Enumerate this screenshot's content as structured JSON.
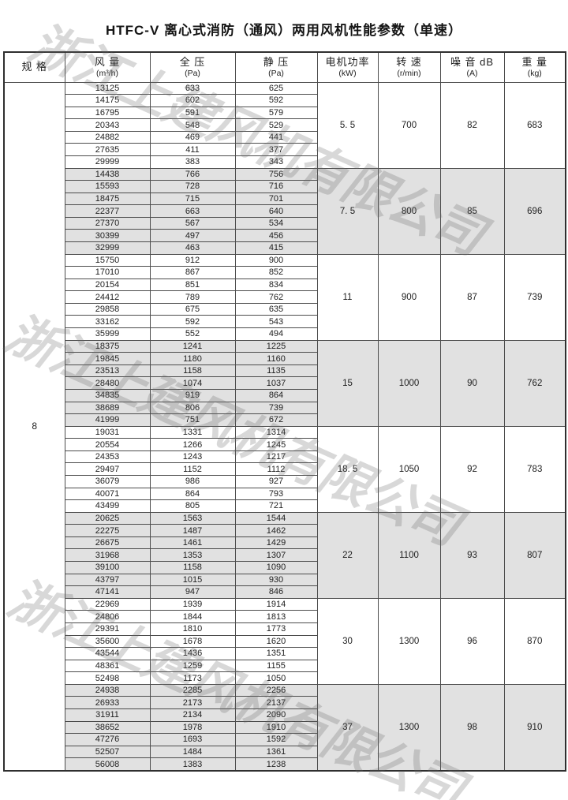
{
  "title": "HTFC-V 离心式消防（通风）两用风机性能参数（单速）",
  "watermark": {
    "text": "浙江上建风机有限公司"
  },
  "colors": {
    "shaded_row": "#e1e1e1",
    "border": "#4c4c4c",
    "text": "#1e1e1e"
  },
  "table": {
    "columns": [
      {
        "label": "规 格",
        "unit": ""
      },
      {
        "label": "风 量",
        "unit": "(m³/h)"
      },
      {
        "label": "全 压",
        "unit": "(Pa)"
      },
      {
        "label": "静 压",
        "unit": "(Pa)"
      },
      {
        "label": "电机功率",
        "unit": "(kW)"
      },
      {
        "label": "转 速",
        "unit": "(r/min)"
      },
      {
        "label": "噪 音 dB",
        "unit": "(A)"
      },
      {
        "label": "重 量",
        "unit": "(kg)"
      }
    ],
    "spec": "8",
    "groups": [
      {
        "power": "5. 5",
        "speed": "700",
        "noise": "82",
        "weight": "683",
        "shaded": false,
        "rows": [
          [
            "13125",
            "633",
            "625"
          ],
          [
            "14175",
            "602",
            "592"
          ],
          [
            "16795",
            "591",
            "579"
          ],
          [
            "20343",
            "548",
            "529"
          ],
          [
            "24882",
            "469",
            "441"
          ],
          [
            "27635",
            "411",
            "377"
          ],
          [
            "29999",
            "383",
            "343"
          ]
        ]
      },
      {
        "power": "7. 5",
        "speed": "800",
        "noise": "85",
        "weight": "696",
        "shaded": true,
        "rows": [
          [
            "14438",
            "766",
            "756"
          ],
          [
            "15593",
            "728",
            "716"
          ],
          [
            "18475",
            "715",
            "701"
          ],
          [
            "22377",
            "663",
            "640"
          ],
          [
            "27370",
            "567",
            "534"
          ],
          [
            "30399",
            "497",
            "456"
          ],
          [
            "32999",
            "463",
            "415"
          ]
        ]
      },
      {
        "power": "11",
        "speed": "900",
        "noise": "87",
        "weight": "739",
        "shaded": false,
        "rows": [
          [
            "15750",
            "912",
            "900"
          ],
          [
            "17010",
            "867",
            "852"
          ],
          [
            "20154",
            "851",
            "834"
          ],
          [
            "24412",
            "789",
            "762"
          ],
          [
            "29858",
            "675",
            "635"
          ],
          [
            "33162",
            "592",
            "543"
          ],
          [
            "35999",
            "552",
            "494"
          ]
        ]
      },
      {
        "power": "15",
        "speed": "1000",
        "noise": "90",
        "weight": "762",
        "shaded": true,
        "rows": [
          [
            "18375",
            "1241",
            "1225"
          ],
          [
            "19845",
            "1180",
            "1160"
          ],
          [
            "23513",
            "1158",
            "1135"
          ],
          [
            "28480",
            "1074",
            "1037"
          ],
          [
            "34835",
            "919",
            "864"
          ],
          [
            "38689",
            "806",
            "739"
          ],
          [
            "41999",
            "751",
            "672"
          ]
        ]
      },
      {
        "power": "18. 5",
        "speed": "1050",
        "noise": "92",
        "weight": "783",
        "shaded": false,
        "rows": [
          [
            "19031",
            "1331",
            "1314"
          ],
          [
            "20554",
            "1266",
            "1245"
          ],
          [
            "24353",
            "1243",
            "1217"
          ],
          [
            "29497",
            "1152",
            "1112"
          ],
          [
            "36079",
            "986",
            "927"
          ],
          [
            "40071",
            "864",
            "793"
          ],
          [
            "43499",
            "805",
            "721"
          ]
        ]
      },
      {
        "power": "22",
        "speed": "1100",
        "noise": "93",
        "weight": "807",
        "shaded": true,
        "rows": [
          [
            "20625",
            "1563",
            "1544"
          ],
          [
            "22275",
            "1487",
            "1462"
          ],
          [
            "26675",
            "1461",
            "1429"
          ],
          [
            "31968",
            "1353",
            "1307"
          ],
          [
            "39100",
            "1158",
            "1090"
          ],
          [
            "43797",
            "1015",
            "930"
          ],
          [
            "47141",
            "947",
            "846"
          ]
        ]
      },
      {
        "power": "30",
        "speed": "1300",
        "noise": "96",
        "weight": "870",
        "shaded": false,
        "rows": [
          [
            "22969",
            "1939",
            "1914"
          ],
          [
            "24806",
            "1844",
            "1813"
          ],
          [
            "29391",
            "1810",
            "1773"
          ],
          [
            "35600",
            "1678",
            "1620"
          ],
          [
            "43544",
            "1436",
            "1351"
          ],
          [
            "48361",
            "1259",
            "1155"
          ],
          [
            "52498",
            "1173",
            "1050"
          ]
        ]
      },
      {
        "power": "37",
        "speed": "1300",
        "noise": "98",
        "weight": "910",
        "shaded": true,
        "rows": [
          [
            "24938",
            "2285",
            "2256"
          ],
          [
            "26933",
            "2173",
            "2137"
          ],
          [
            "31911",
            "2134",
            "2090"
          ],
          [
            "38652",
            "1978",
            "1910"
          ],
          [
            "47276",
            "1693",
            "1592"
          ],
          [
            "52507",
            "1484",
            "1361"
          ],
          [
            "56008",
            "1383",
            "1238"
          ]
        ]
      }
    ]
  }
}
